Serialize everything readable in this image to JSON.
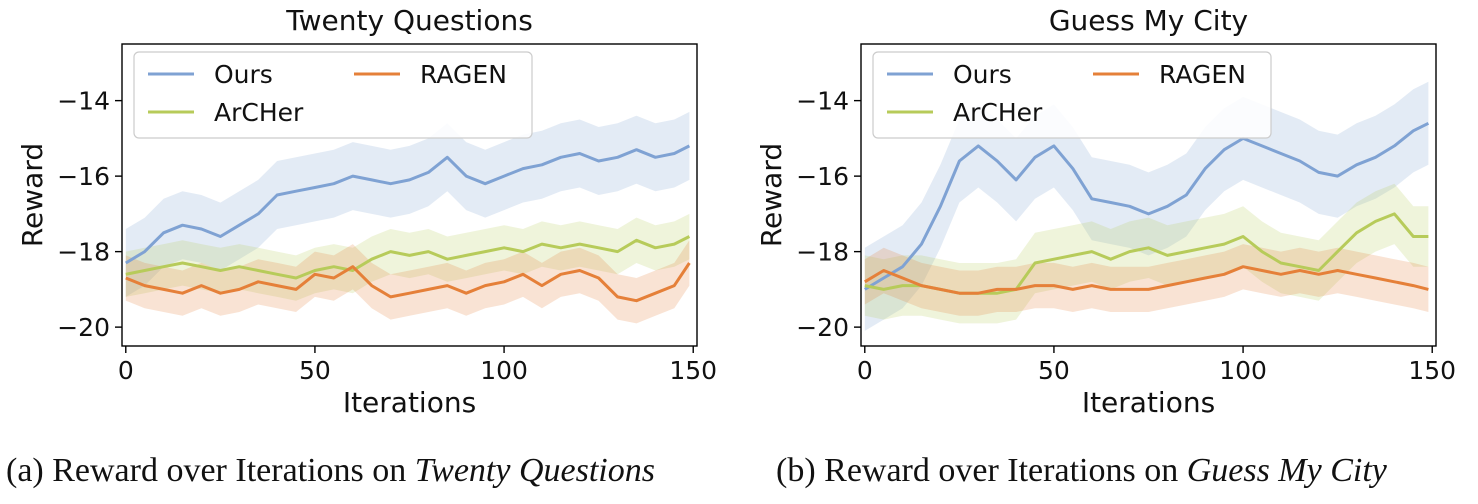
{
  "figure": {
    "captions": [
      {
        "prefix": "(a) Reward over Iterations on ",
        "emph": "Twenty Questions"
      },
      {
        "prefix": "(b) Reward over Iterations on ",
        "emph": "Guess My City"
      }
    ]
  },
  "colors": {
    "Ours": "#7fa2d3",
    "ArCHer": "#b7cb5a",
    "RAGEN": "#e58039"
  },
  "chart_data": [
    {
      "type": "line",
      "title": "Twenty Questions",
      "xlabel": "Iterations",
      "ylabel": "Reward",
      "xlim": [
        -1,
        151
      ],
      "ylim": [
        -20.5,
        -12.5
      ],
      "xticks": [
        0,
        50,
        100,
        150
      ],
      "yticks": [
        -20,
        -18,
        -16,
        -14
      ],
      "ytick_labels": [
        "−20",
        "−18",
        "−16",
        "−14"
      ],
      "grid": false,
      "legend": {
        "placement": "top-left",
        "columns": 2,
        "order": [
          "Ours",
          "RAGEN",
          "ArCHer"
        ]
      },
      "shaded_bands": true,
      "series": [
        {
          "name": "Ours",
          "x": [
            0,
            5,
            10,
            15,
            20,
            25,
            30,
            35,
            40,
            45,
            50,
            55,
            60,
            65,
            70,
            75,
            80,
            85,
            90,
            95,
            100,
            105,
            110,
            115,
            120,
            125,
            130,
            135,
            140,
            145,
            149
          ],
          "values": [
            -18.3,
            -18.0,
            -17.5,
            -17.3,
            -17.4,
            -17.6,
            -17.3,
            -17.0,
            -16.5,
            -16.4,
            -16.3,
            -16.2,
            -16.0,
            -16.1,
            -16.2,
            -16.1,
            -15.9,
            -15.5,
            -16.0,
            -16.2,
            -16.0,
            -15.8,
            -15.7,
            -15.5,
            -15.4,
            -15.6,
            -15.5,
            -15.3,
            -15.5,
            -15.4,
            -15.2
          ],
          "band": 0.9
        },
        {
          "name": "ArCHer",
          "x": [
            0,
            5,
            10,
            15,
            20,
            25,
            30,
            35,
            40,
            45,
            50,
            55,
            60,
            65,
            70,
            75,
            80,
            85,
            90,
            95,
            100,
            105,
            110,
            115,
            120,
            125,
            130,
            135,
            140,
            145,
            149
          ],
          "values": [
            -18.6,
            -18.5,
            -18.4,
            -18.3,
            -18.4,
            -18.5,
            -18.4,
            -18.5,
            -18.6,
            -18.7,
            -18.5,
            -18.4,
            -18.5,
            -18.2,
            -18.0,
            -18.1,
            -18.0,
            -18.2,
            -18.1,
            -18.0,
            -17.9,
            -18.0,
            -17.8,
            -17.9,
            -17.8,
            -17.9,
            -18.0,
            -17.7,
            -17.9,
            -17.8,
            -17.6
          ],
          "band": 0.6
        },
        {
          "name": "RAGEN",
          "x": [
            0,
            5,
            10,
            15,
            20,
            25,
            30,
            35,
            40,
            45,
            50,
            55,
            60,
            65,
            70,
            75,
            80,
            85,
            90,
            95,
            100,
            105,
            110,
            115,
            120,
            125,
            130,
            135,
            140,
            145,
            149
          ],
          "values": [
            -18.7,
            -18.9,
            -19.0,
            -19.1,
            -18.9,
            -19.1,
            -19.0,
            -18.8,
            -18.9,
            -19.0,
            -18.6,
            -18.7,
            -18.4,
            -18.9,
            -19.2,
            -19.1,
            -19.0,
            -18.9,
            -19.1,
            -18.9,
            -18.8,
            -18.6,
            -18.9,
            -18.6,
            -18.5,
            -18.7,
            -19.2,
            -19.3,
            -19.1,
            -18.9,
            -18.3
          ],
          "band": 0.6
        }
      ]
    },
    {
      "type": "line",
      "title": "Guess My City",
      "xlabel": "Iterations",
      "ylabel": "Reward",
      "xlim": [
        -1,
        151
      ],
      "ylim": [
        -20.5,
        -12.5
      ],
      "xticks": [
        0,
        50,
        100,
        150
      ],
      "yticks": [
        -20,
        -18,
        -16,
        -14
      ],
      "ytick_labels": [
        "−20",
        "−18",
        "−16",
        "−14"
      ],
      "grid": false,
      "legend": {
        "placement": "top-left",
        "columns": 2,
        "order": [
          "Ours",
          "RAGEN",
          "ArCHer"
        ]
      },
      "shaded_bands": true,
      "series": [
        {
          "name": "Ours",
          "x": [
            0,
            5,
            10,
            15,
            20,
            25,
            30,
            35,
            40,
            45,
            50,
            55,
            60,
            65,
            70,
            75,
            80,
            85,
            90,
            95,
            100,
            105,
            110,
            115,
            120,
            125,
            130,
            135,
            140,
            145,
            149
          ],
          "values": [
            -19.0,
            -18.7,
            -18.4,
            -17.8,
            -16.8,
            -15.6,
            -15.2,
            -15.6,
            -16.1,
            -15.5,
            -15.2,
            -15.8,
            -16.6,
            -16.7,
            -16.8,
            -17.0,
            -16.8,
            -16.5,
            -15.8,
            -15.3,
            -15.0,
            -15.2,
            -15.4,
            -15.6,
            -15.9,
            -16.0,
            -15.7,
            -15.5,
            -15.2,
            -14.8,
            -14.6
          ],
          "band": 1.1
        },
        {
          "name": "ArCHer",
          "x": [
            0,
            5,
            10,
            15,
            20,
            25,
            30,
            35,
            40,
            45,
            50,
            55,
            60,
            65,
            70,
            75,
            80,
            85,
            90,
            95,
            100,
            105,
            110,
            115,
            120,
            125,
            130,
            135,
            140,
            145,
            149
          ],
          "values": [
            -18.9,
            -19.0,
            -18.9,
            -18.9,
            -19.0,
            -19.1,
            -19.1,
            -19.1,
            -19.0,
            -18.3,
            -18.2,
            -18.1,
            -18.0,
            -18.2,
            -18.0,
            -17.9,
            -18.1,
            -18.0,
            -17.9,
            -17.8,
            -17.6,
            -18.0,
            -18.3,
            -18.4,
            -18.5,
            -18.0,
            -17.5,
            -17.2,
            -17.0,
            -17.6,
            -17.6
          ],
          "band": 0.8
        },
        {
          "name": "RAGEN",
          "x": [
            0,
            5,
            10,
            15,
            20,
            25,
            30,
            35,
            40,
            45,
            50,
            55,
            60,
            65,
            70,
            75,
            80,
            85,
            90,
            95,
            100,
            105,
            110,
            115,
            120,
            125,
            130,
            135,
            140,
            145,
            149
          ],
          "values": [
            -18.8,
            -18.5,
            -18.7,
            -18.9,
            -19.0,
            -19.1,
            -19.1,
            -19.0,
            -19.0,
            -18.9,
            -18.9,
            -19.0,
            -18.9,
            -19.0,
            -19.0,
            -19.0,
            -18.9,
            -18.8,
            -18.7,
            -18.6,
            -18.4,
            -18.5,
            -18.6,
            -18.5,
            -18.6,
            -18.5,
            -18.6,
            -18.7,
            -18.8,
            -18.9,
            -19.0
          ],
          "band": 0.6
        }
      ]
    }
  ]
}
